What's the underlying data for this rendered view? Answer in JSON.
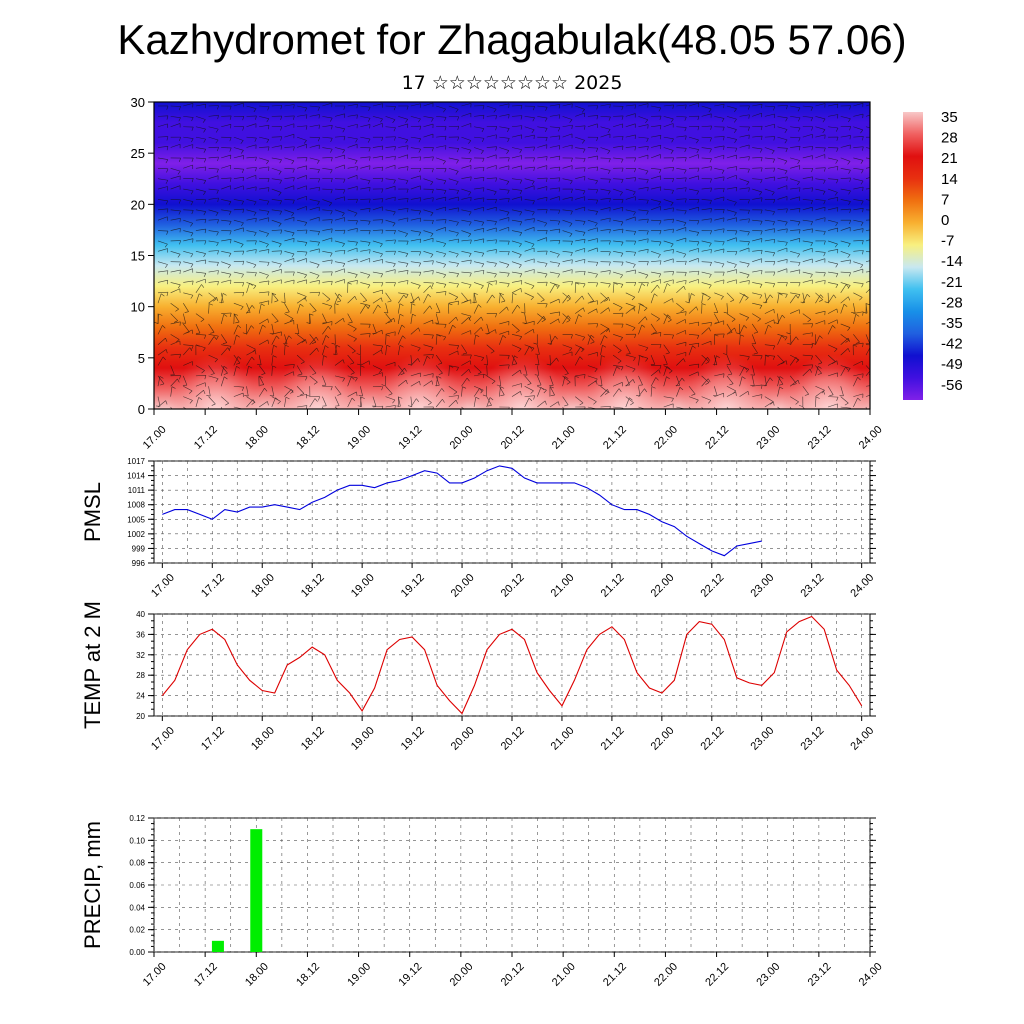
{
  "header": {
    "title": "Kazhydromet for Zhagabulak(48.05 57.06)",
    "subtitle": "17 ☆☆☆☆☆☆☆☆ 2025"
  },
  "time_labels": [
    "17.00",
    "17.12",
    "18.00",
    "18.12",
    "19.00",
    "19.12",
    "20.00",
    "20.12",
    "21.00",
    "21.12",
    "22.00",
    "22.12",
    "23.00",
    "23.12",
    "24.00"
  ],
  "chart_data": [
    {
      "type": "heatmap",
      "name": "cross-section",
      "x": [
        "17.00",
        "17.12",
        "18.00",
        "18.12",
        "19.00",
        "19.12",
        "20.00",
        "20.12",
        "21.00",
        "21.12",
        "22.00",
        "22.12",
        "23.00",
        "23.12",
        "24.00"
      ],
      "ylim": [
        0,
        30
      ],
      "yticks": [
        0,
        5,
        10,
        15,
        20,
        25,
        30
      ],
      "levels_km": [
        0,
        2,
        4,
        6,
        8,
        10,
        12,
        14,
        16,
        18,
        20,
        22,
        24,
        26,
        28,
        30
      ],
      "level_temperature": [
        32,
        26,
        18,
        10,
        4,
        -2,
        -8,
        -16,
        -26,
        -36,
        -46,
        -52,
        -57,
        -55,
        -50,
        -47
      ],
      "colorbar": {
        "labels": [
          "35",
          "28",
          "21",
          "14",
          "7",
          "0",
          "-7",
          "-14",
          "-21",
          "-28",
          "-35",
          "-42",
          "-49",
          "-56"
        ],
        "colors": [
          "#f8c8c8",
          "#f06060",
          "#e01010",
          "#e83010",
          "#f07010",
          "#f8b030",
          "#f8f080",
          "#c8e8f0",
          "#40c0f0",
          "#1890e8",
          "#2060e0",
          "#1010d0",
          "#4010e0",
          "#8020e8"
        ]
      }
    },
    {
      "type": "line",
      "name": "PMSL",
      "ylabel": "PMSL",
      "ylim": [
        996,
        1017
      ],
      "yticks": [
        996,
        999,
        1002,
        1005,
        1008,
        1011,
        1014,
        1017
      ],
      "x_step_hours": 3,
      "color": "#0000dd",
      "values": [
        1006,
        1007,
        1007,
        1006,
        1005,
        1007,
        1006.5,
        1007.5,
        1007.5,
        1008,
        1007.5,
        1007,
        1008.5,
        1009.5,
        1011,
        1012,
        1012,
        1011.5,
        1012.5,
        1013,
        1014,
        1015,
        1014.5,
        1012.5,
        1012.5,
        1013.5,
        1015,
        1016,
        1015.5,
        1013.5,
        1012.5,
        1012.5,
        1012.5,
        1012.5,
        1011.5,
        1010,
        1008,
        1007,
        1007,
        1006,
        1004.5,
        1003.5,
        1001.5,
        1000,
        998.5,
        997.5,
        999.5,
        1000,
        1000.5
      ]
    },
    {
      "type": "line",
      "name": "TEMP at 2 M",
      "ylabel": "TEMP at 2 M",
      "ylim": [
        20,
        40
      ],
      "yticks": [
        20,
        24,
        28,
        32,
        36,
        40
      ],
      "x_step_hours": 3,
      "color": "#dd0000",
      "values": [
        24,
        27,
        33,
        36,
        37,
        35,
        30,
        27,
        25,
        24.5,
        30,
        31.5,
        33.5,
        32,
        27,
        24.5,
        21,
        25.5,
        33,
        35,
        35.5,
        33,
        26,
        23,
        20.5,
        26,
        33,
        36,
        37,
        35,
        28.5,
        25,
        22,
        27,
        33,
        36,
        37.5,
        35,
        28.5,
        25.5,
        24.5,
        27,
        36,
        38.5,
        38,
        35,
        27.5,
        26.5,
        26,
        28.5,
        36.5,
        38.5,
        39.5,
        37,
        29,
        26,
        22
      ]
    },
    {
      "type": "bar",
      "name": "PRECIP, mm",
      "ylabel": "PRECIP, mm",
      "ylim": [
        0,
        0.12
      ],
      "yticks": [
        "0.00",
        "0.02",
        "0.04",
        "0.06",
        "0.08",
        "0.10",
        "0.12"
      ],
      "color": "#00ee00",
      "bars": [
        {
          "time": "17.15",
          "value": 0.01
        },
        {
          "time": "18.00",
          "value": 0.11
        }
      ]
    }
  ]
}
